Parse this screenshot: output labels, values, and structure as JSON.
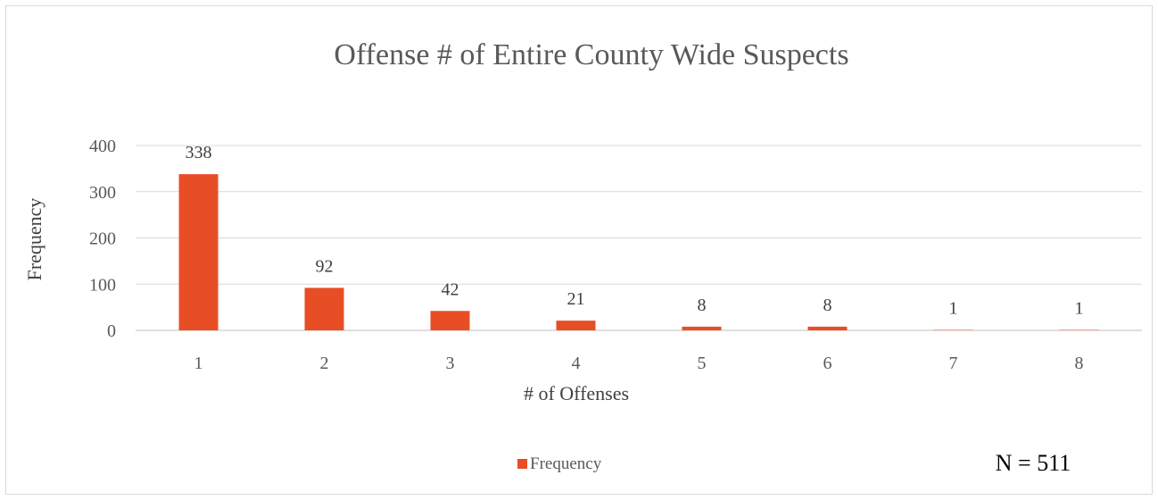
{
  "chart_data": {
    "type": "bar",
    "title": "Offense # of Entire County Wide Suspects",
    "xlabel": "# of Offenses",
    "ylabel": "Frequency",
    "categories": [
      "1",
      "2",
      "3",
      "4",
      "5",
      "6",
      "7",
      "8"
    ],
    "series": [
      {
        "name": "Frequency",
        "values": [
          338,
          92,
          42,
          21,
          8,
          8,
          1,
          1
        ]
      }
    ],
    "data_labels": [
      "338",
      "92",
      "42",
      "21",
      "8",
      "8",
      "1",
      "1"
    ],
    "ylim": [
      0,
      400
    ],
    "yticks": [
      0,
      100,
      200,
      300,
      400
    ],
    "ytick_labels": [
      "0",
      "100",
      "200",
      "300",
      "400"
    ],
    "grid": true,
    "legend_position": "bottom",
    "annotation": "N = 511",
    "colors": {
      "bar": "#E84E25",
      "grid": "#d9d9d9",
      "axis": "#bfbfbf",
      "title": "#595959",
      "tick_text": "#595959",
      "label_text": "#404040",
      "annotation_text": "#000000"
    }
  }
}
